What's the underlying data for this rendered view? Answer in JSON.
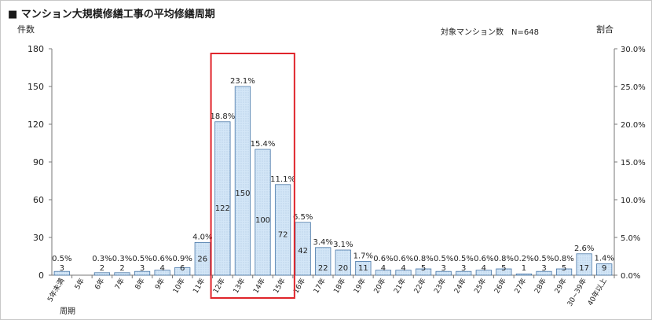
{
  "title": "■ マンション大規模修繕工事の平均修繕周期",
  "chart_data": {
    "type": "bar",
    "title": "マンション大規模修繕工事の平均修繕周期",
    "ylabel": "件数",
    "y2label": "割合",
    "xlabel": "周期",
    "sample_note": "対象マンション数　N=648",
    "ylim": [
      0,
      180
    ],
    "y2lim": [
      0,
      30
    ],
    "yticks": [
      "0",
      "30",
      "60",
      "90",
      "120",
      "150",
      "180"
    ],
    "y2ticks": [
      "0.0%",
      "5.0%",
      "10.0%",
      "15.0%",
      "20.0%",
      "25.0%",
      "30.0%"
    ],
    "categories": [
      "5年未満",
      "5年",
      "6年",
      "7年",
      "8年",
      "9年",
      "10年",
      "11年",
      "12年",
      "13年",
      "14年",
      "15年",
      "16年",
      "17年",
      "18年",
      "19年",
      "20年",
      "21年",
      "22年",
      "23年",
      "24年",
      "25年",
      "26年",
      "27年",
      "28年",
      "29年",
      "30~39年",
      "40年以上"
    ],
    "series": [
      {
        "values": [
          3,
          0,
          2,
          2,
          3,
          4,
          6,
          26,
          122,
          150,
          100,
          72,
          42,
          22,
          20,
          11,
          4,
          4,
          5,
          3,
          3,
          4,
          5,
          1,
          3,
          5,
          17,
          9
        ],
        "value_labels": [
          "3",
          "",
          "2",
          "2",
          "3",
          "4",
          "6",
          "26",
          "122",
          "150",
          "100",
          "72",
          "42",
          "22",
          "20",
          "11",
          "4",
          "4",
          "5",
          "3",
          "3",
          "4",
          "5",
          "1",
          "3",
          "5",
          "17",
          "9"
        ],
        "percent_labels": [
          "0.5%",
          "",
          "0.3%",
          "0.3%",
          "0.5%",
          "0.6%",
          "0.9%",
          "4.0%",
          "18.8%",
          "23.1%",
          "15.4%",
          "11.1%",
          "6.5%",
          "3.4%",
          "3.1%",
          "1.7%",
          "0.6%",
          "0.6%",
          "0.8%",
          "0.5%",
          "0.5%",
          "0.6%",
          "0.8%",
          "0.2%",
          "0.5%",
          "0.8%",
          "2.6%",
          "1.4%"
        ]
      }
    ],
    "highlight": {
      "from": "12年",
      "to": "15年",
      "color": "#e0252b"
    },
    "bar_fill": "#cfe3f5",
    "bar_stroke": "#4a78a8",
    "grid": false
  }
}
